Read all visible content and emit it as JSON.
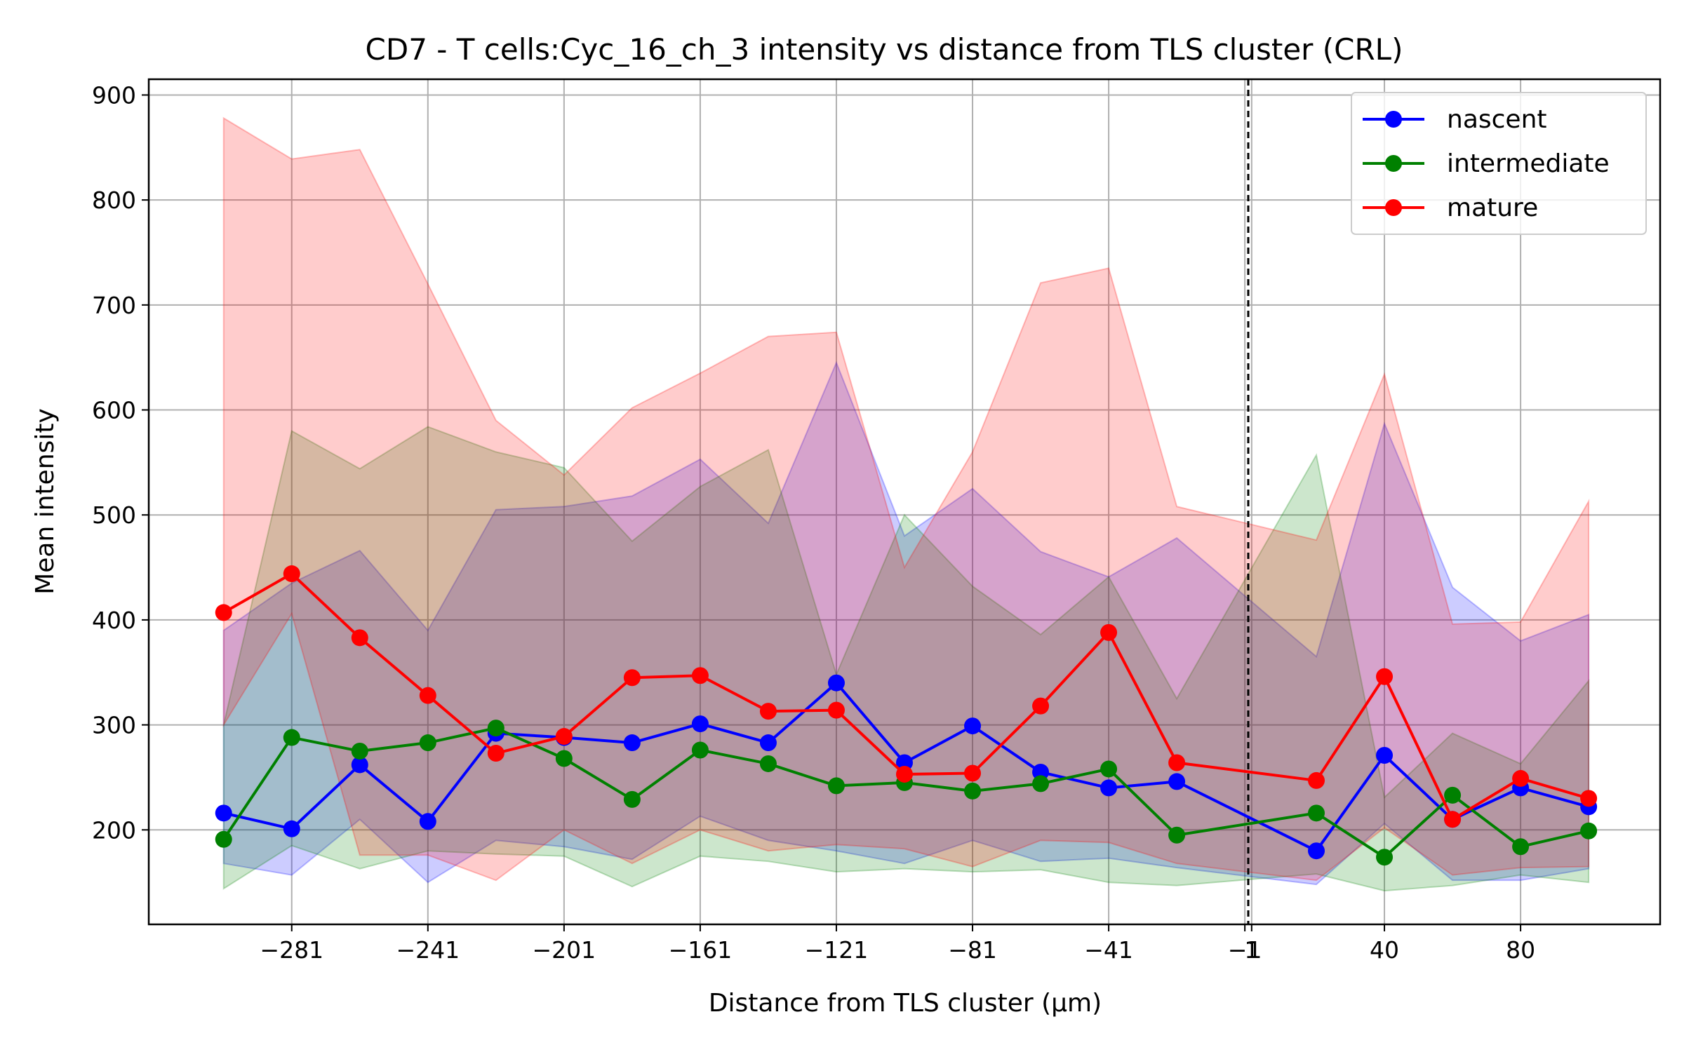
{
  "chart_data": {
    "type": "line",
    "title": "CD7 - T cells:Cyc_16_ch_3 intensity vs distance from TLS cluster (CRL)",
    "xlabel": "Distance from TLS cluster (μm)",
    "ylabel": "Mean intensity",
    "xlim": [
      -323,
      121
    ],
    "ylim": [
      110,
      915
    ],
    "x_ticks": [
      -281,
      -241,
      -201,
      -161,
      -121,
      -81,
      -41,
      -1,
      1,
      40,
      80
    ],
    "x_tick_labels": [
      "−281",
      "−241",
      "−201",
      "−161",
      "−121",
      "−81",
      "−41",
      "−1",
      "1",
      "40",
      "80"
    ],
    "y_ticks": [
      200,
      300,
      400,
      500,
      600,
      700,
      800,
      900
    ],
    "y_tick_labels": [
      "200",
      "300",
      "400",
      "500",
      "600",
      "700",
      "800",
      "900"
    ],
    "grid": true,
    "legend_position": "top-right",
    "reference_line_x": 0,
    "series": [
      {
        "name": "nascent",
        "color": "#0000ff",
        "x": [
          -301,
          -281,
          -261,
          -241,
          -221,
          -201,
          -181,
          -161,
          -141,
          -121,
          -101,
          -81,
          -61,
          -41,
          -21,
          20,
          40,
          60,
          80,
          100
        ],
        "y": [
          216,
          201,
          262,
          208,
          292,
          288,
          283,
          301,
          283,
          340,
          264,
          299,
          255,
          240,
          246,
          180,
          271,
          210,
          240,
          222
        ],
        "upper": [
          390,
          435,
          466,
          390,
          505,
          508,
          518,
          553,
          492,
          645,
          480,
          525,
          465,
          441,
          478,
          365,
          587,
          431,
          380,
          405
        ],
        "lower": [
          168,
          157,
          210,
          150,
          190,
          184,
          172,
          213,
          190,
          180,
          168,
          190,
          170,
          173,
          164,
          148,
          206,
          152,
          152,
          163
        ]
      },
      {
        "name": "intermediate",
        "color": "#008000",
        "x": [
          -301,
          -281,
          -261,
          -241,
          -221,
          -201,
          -181,
          -161,
          -141,
          -121,
          -101,
          -81,
          -61,
          -41,
          -21,
          20,
          40,
          60,
          80,
          100
        ],
        "y": [
          191,
          288,
          275,
          283,
          297,
          268,
          229,
          276,
          263,
          242,
          245,
          237,
          244,
          258,
          195,
          216,
          174,
          233,
          184,
          199
        ],
        "upper": [
          300,
          580,
          544,
          584,
          560,
          545,
          475,
          527,
          562,
          348,
          500,
          432,
          386,
          441,
          325,
          557,
          231,
          292,
          263,
          342
        ],
        "lower": [
          144,
          185,
          163,
          180,
          177,
          175,
          146,
          175,
          170,
          160,
          163,
          160,
          162,
          150,
          147,
          158,
          142,
          147,
          157,
          150
        ]
      },
      {
        "name": "mature",
        "color": "#ff0000",
        "x": [
          -301,
          -281,
          -261,
          -241,
          -221,
          -201,
          -181,
          -161,
          -141,
          -121,
          -101,
          -81,
          -61,
          -41,
          -21,
          20,
          40,
          60,
          80,
          100
        ],
        "y": [
          407,
          444,
          383,
          328,
          273,
          289,
          345,
          347,
          313,
          314,
          253,
          254,
          318,
          388,
          264,
          247,
          346,
          210,
          249,
          230
        ],
        "upper": [
          878,
          839,
          848,
          720,
          590,
          538,
          602,
          635,
          670,
          674,
          450,
          560,
          721,
          735,
          508,
          476,
          634,
          396,
          398,
          513
        ],
        "lower": [
          300,
          406,
          176,
          176,
          152,
          200,
          168,
          200,
          180,
          186,
          182,
          165,
          190,
          188,
          168,
          152,
          202,
          157,
          164,
          165
        ]
      }
    ]
  }
}
